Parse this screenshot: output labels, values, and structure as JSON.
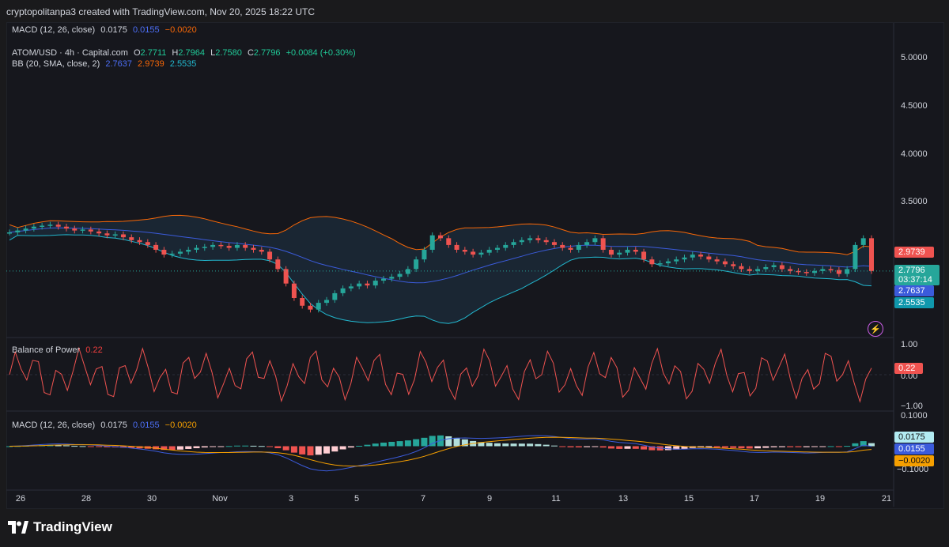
{
  "header": {
    "attribution": "cryptopolitanpa3 created with TradingView.com, Nov 20, 2025 18:22 UTC"
  },
  "legend_top": {
    "macd_label": "MACD (12, 26, close)",
    "macd_val": "0.0175",
    "signal_val": "0.0155",
    "hist_val": "−0.0020"
  },
  "legend_price": {
    "symbol": "ATOM/USD · 4h · Capital.com",
    "o_label": "O",
    "o_val": "2.7711",
    "h_label": "H",
    "h_val": "2.7964",
    "l_label": "L",
    "l_val": "2.7580",
    "c_label": "C",
    "c_val": "2.7796",
    "change": "+0.0084 (+0.30%)"
  },
  "legend_bb": {
    "label": "BB (20, SMA, close, 2)",
    "basis": "2.7637",
    "upper": "2.9739",
    "lower": "2.5535"
  },
  "legend_bop": {
    "label": "Balance of Power",
    "value": "0.22"
  },
  "legend_macd_bottom": {
    "label": "MACD (12, 26, close)",
    "macd_val": "0.0175",
    "signal_val": "0.0155",
    "hist_val": "−0.0020"
  },
  "price_axis": {
    "ticks": [
      "5.0000",
      "4.5000",
      "4.0000",
      "3.5000"
    ],
    "tag_upper": "2.9739",
    "tag_close": "2.7796",
    "tag_countdown": "03:37:14",
    "tag_basis": "2.7637",
    "tag_lower": "2.5535"
  },
  "bop_axis": {
    "ticks": [
      "1.00",
      "0.00",
      "−1.00"
    ],
    "tag_value": "0.22"
  },
  "macd_axis": {
    "ticks": [
      "0.1000",
      "−0.1000"
    ],
    "tag_macd": "0.0175",
    "tag_signal": "0.0155",
    "tag_hist": "−0.0020"
  },
  "time_axis": {
    "ticks": [
      "26",
      "28",
      "30",
      "Nov",
      "3",
      "5",
      "7",
      "9",
      "11",
      "13",
      "15",
      "17",
      "19",
      "21"
    ]
  },
  "brand": {
    "name": "TradingView"
  },
  "colors": {
    "up": "#26a69a",
    "down": "#ef5350",
    "bb_upper": "#f76707",
    "bb_lower": "#22b8cf",
    "bb_basis": "#3b5bdb",
    "bop_line": "#ef5350",
    "macd_line": "#3b5bdb",
    "signal_line": "#f59f00"
  },
  "chart_data": {
    "type": "candlestick",
    "symbol": "ATOM/USD",
    "timeframe": "4h",
    "ylim": [
      2.2,
      5.2
    ],
    "x_dates": [
      "26",
      "28",
      "30",
      "Nov",
      "3",
      "5",
      "7",
      "9",
      "11",
      "13",
      "15",
      "17",
      "19",
      "21"
    ],
    "close_series": [
      3.18,
      3.2,
      3.22,
      3.24,
      3.25,
      3.26,
      3.24,
      3.22,
      3.2,
      3.21,
      3.19,
      3.17,
      3.15,
      3.16,
      3.13,
      3.1,
      3.08,
      3.05,
      3.0,
      2.95,
      2.96,
      2.98,
      3.0,
      3.02,
      3.03,
      3.05,
      3.04,
      3.02,
      3.05,
      3.02,
      3.0,
      2.98,
      2.9,
      2.8,
      2.65,
      2.5,
      2.42,
      2.38,
      2.45,
      2.48,
      2.55,
      2.6,
      2.62,
      2.65,
      2.63,
      2.68,
      2.7,
      2.72,
      2.75,
      2.8,
      2.9,
      3.0,
      3.15,
      3.12,
      3.05,
      3.0,
      2.98,
      2.95,
      2.97,
      3.0,
      3.02,
      3.05,
      3.08,
      3.1,
      3.12,
      3.1,
      3.08,
      3.05,
      3.02,
      3.0,
      3.05,
      3.08,
      3.12,
      3.0,
      2.95,
      2.97,
      3.0,
      2.98,
      2.9,
      2.85,
      2.86,
      2.88,
      2.9,
      2.92,
      2.95,
      2.93,
      2.9,
      2.88,
      2.85,
      2.83,
      2.8,
      2.78,
      2.8,
      2.82,
      2.84,
      2.8,
      2.78,
      2.77,
      2.76,
      2.78,
      2.8,
      2.79,
      2.75,
      2.8,
      3.05,
      3.12,
      2.78
    ],
    "bb_upper": 2.9739,
    "bb_basis": 2.7637,
    "bb_lower": 2.5535,
    "last_close": 2.7796,
    "bop_range": [
      -1.0,
      1.0
    ],
    "bop_last": 0.22,
    "macd_range": [
      -0.12,
      0.12
    ],
    "macd_last": 0.0175,
    "signal_last": 0.0155,
    "hist_last": -0.002
  }
}
